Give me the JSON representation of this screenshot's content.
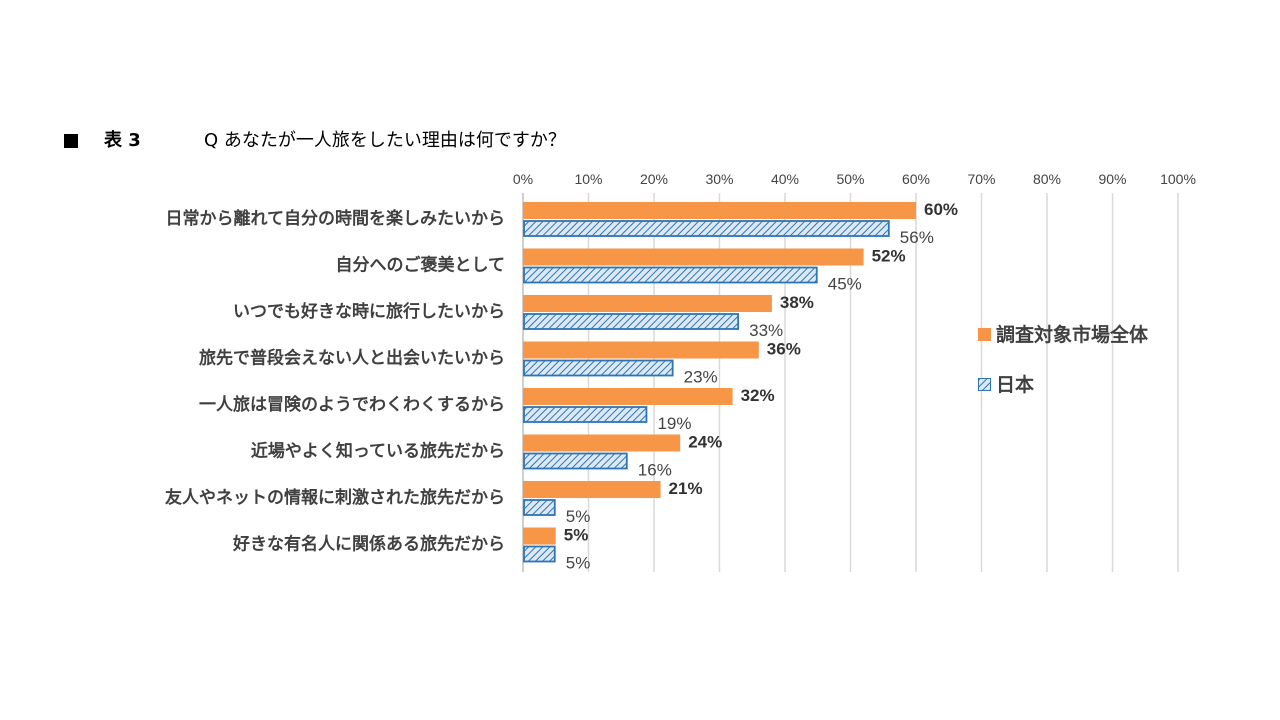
{
  "title": {
    "label": "表 3",
    "question": "Q あなたが一人旅をしたい理由は何ですか？"
  },
  "colors": {
    "series_a": "#F79646",
    "series_b_line": "#2E75B6",
    "series_b_fill": "#DCE9F5",
    "grid": "#D9D9D9",
    "axis": "#BFBFBF"
  },
  "chart_data": {
    "type": "bar",
    "orientation": "horizontal",
    "categories": [
      "日常から離れて自分の時間を楽しみたいから",
      "自分へのご褒美として",
      "いつでも好きな時に旅行したいから",
      "旅先で普段会えない人と出会いたいから",
      "一人旅は冒険のようでわくわくするから",
      "近場やよく知っている旅先だから",
      "友人やネットの情報に刺激された旅先だから",
      "好きな有名人に関係ある旅先だから"
    ],
    "series": [
      {
        "name": "調査対象市場全体",
        "values": [
          60,
          52,
          38,
          36,
          32,
          24,
          21,
          5
        ],
        "labels": [
          "60%",
          "52%",
          "38%",
          "36%",
          "32%",
          "24%",
          "21%",
          "5%"
        ]
      },
      {
        "name": "日本",
        "values": [
          56,
          45,
          33,
          23,
          19,
          16,
          5,
          5
        ],
        "labels": [
          "56%",
          "45%",
          "33%",
          "23%",
          "19%",
          "16%",
          "5%",
          "5%"
        ]
      }
    ],
    "xlim": [
      0,
      100
    ],
    "xticks": [
      "0%",
      "10%",
      "20%",
      "30%",
      "40%",
      "50%",
      "60%",
      "70%",
      "80%",
      "90%",
      "100%"
    ],
    "grid": true,
    "legend_position": "right"
  }
}
